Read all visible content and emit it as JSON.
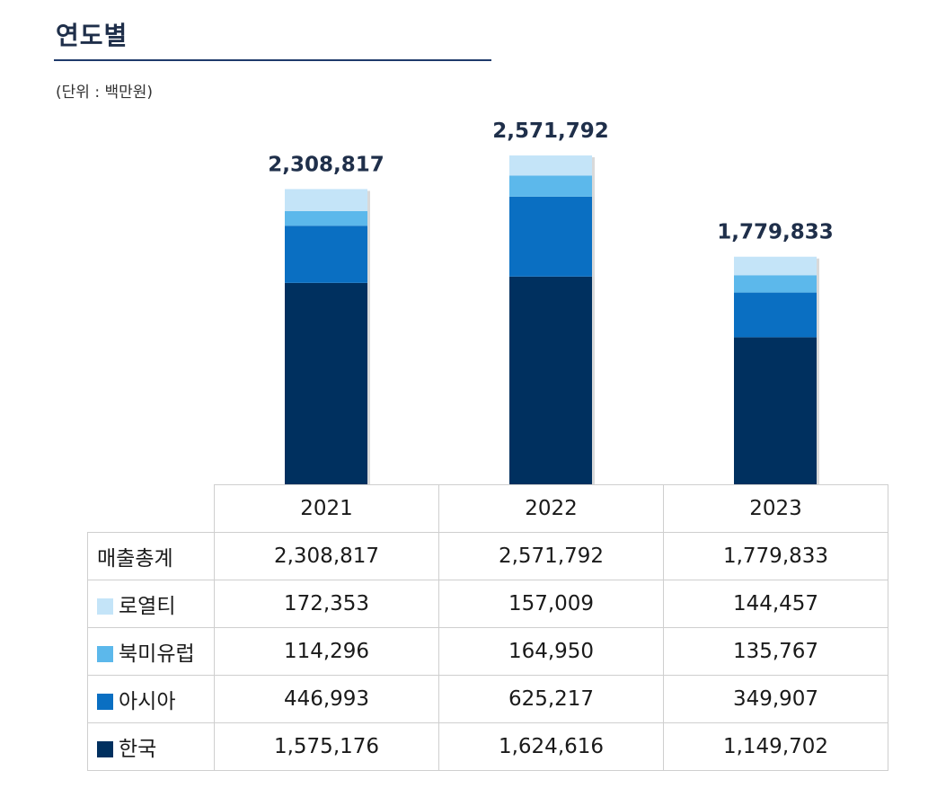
{
  "title": "연도별",
  "unit": "(단위 : 백만원)",
  "colors": {
    "korea": "#00305f",
    "asia": "#0a6fc2",
    "north_america_europe": "#5cb8eb",
    "royalty": "#c4e4f8"
  },
  "chart_data": {
    "type": "bar",
    "stacked": true,
    "categories": [
      "2021",
      "2022",
      "2023"
    ],
    "series": [
      {
        "name": "한국",
        "color": "#00305f",
        "values": [
          1575176,
          1624616,
          1149702
        ]
      },
      {
        "name": "아시아",
        "color": "#0a6fc2",
        "values": [
          446993,
          625217,
          349907
        ]
      },
      {
        "name": "북미유럽",
        "color": "#5cb8eb",
        "values": [
          114296,
          164950,
          135767
        ]
      },
      {
        "name": "로열티",
        "color": "#c4e4f8",
        "values": [
          172353,
          157009,
          144457
        ]
      }
    ],
    "totals": [
      2308817,
      2571792,
      1779833
    ],
    "total_labels": [
      "2,308,817",
      "2,571,792",
      "1,779,833"
    ],
    "ylabel": "",
    "ylim": [
      0,
      2571792
    ],
    "grid": false
  },
  "table": {
    "years": [
      "2021",
      "2022",
      "2023"
    ],
    "rows": [
      {
        "label": "매출총계",
        "swatch": "",
        "values": [
          "2,308,817",
          "2,571,792",
          "1,779,833"
        ]
      },
      {
        "label": "로열티",
        "swatch": "#c4e4f8",
        "values": [
          "172,353",
          "157,009",
          "144,457"
        ]
      },
      {
        "label": "북미유럽",
        "swatch": "#5cb8eb",
        "values": [
          "114,296",
          "164,950",
          "135,767"
        ]
      },
      {
        "label": "아시아",
        "swatch": "#0a6fc2",
        "values": [
          "446,993",
          "625,217",
          "349,907"
        ]
      },
      {
        "label": "한국",
        "swatch": "#00305f",
        "values": [
          "1,575,176",
          "1,624,616",
          "1,149,702"
        ]
      }
    ]
  }
}
